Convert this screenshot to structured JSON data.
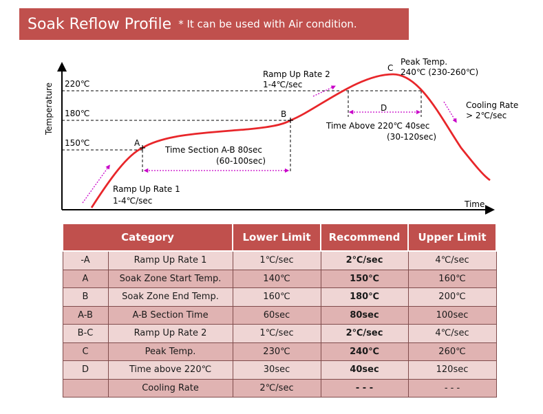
{
  "banner": {
    "title": "Soak Reflow Profile",
    "subtitle": "* It can be used with Air condition."
  },
  "diagram": {
    "y_axis_label": "Temperature",
    "x_axis_label": "Time",
    "temp_220": "220℃",
    "temp_180": "180℃",
    "temp_150": "150℃",
    "point_a": "A",
    "point_b": "B",
    "point_c": "C",
    "point_d": "D",
    "peak_line1": "Peak Temp.",
    "peak_line2": "240℃ (230-260℃)",
    "ramp2_line1": "Ramp Up Rate 2",
    "ramp2_line2": "1-4℃/sec",
    "cooling_line1": "Cooling Rate",
    "cooling_line2": "> 2℃/sec",
    "above_line1": "Time Above 220℃ 40sec",
    "above_line2": "(30-120sec)",
    "section_line1": "Time Section A-B 80sec",
    "section_line2": "(60-100sec)",
    "ramp1_line1": "Ramp Up Rate 1",
    "ramp1_line2": "1-4℃/sec",
    "colors": {
      "curve": "#e8262a",
      "arrow": "#c800c8",
      "banner": "#c0504d"
    }
  },
  "table": {
    "headers": [
      "Category",
      "Lower Limit",
      "Recommend",
      "Upper Limit"
    ],
    "rows": [
      {
        "code": "-A",
        "category": "Ramp Up Rate 1",
        "lower": "1℃/sec",
        "recommend": "2℃/sec",
        "upper": "4℃/sec"
      },
      {
        "code": "A",
        "category": "Soak Zone Start Temp.",
        "lower": "140℃",
        "recommend": "150℃",
        "upper": "160℃"
      },
      {
        "code": "B",
        "category": "Soak Zone End Temp.",
        "lower": "160℃",
        "recommend": "180℃",
        "upper": "200℃"
      },
      {
        "code": "A-B",
        "category": "A-B Section Time",
        "lower": "60sec",
        "recommend": "80sec",
        "upper": "100sec"
      },
      {
        "code": "B-C",
        "category": "Ramp Up Rate 2",
        "lower": "1℃/sec",
        "recommend": "2℃/sec",
        "upper": "4℃/sec"
      },
      {
        "code": "C",
        "category": "Peak Temp.",
        "lower": "230℃",
        "recommend": "240℃",
        "upper": "260℃"
      },
      {
        "code": "D",
        "category": "Time above 220℃",
        "lower": "30sec",
        "recommend": "40sec",
        "upper": "120sec"
      },
      {
        "code": "",
        "category": "Cooling Rate",
        "lower": "2℃/sec",
        "recommend": "- - -",
        "upper": "- - -"
      }
    ]
  }
}
